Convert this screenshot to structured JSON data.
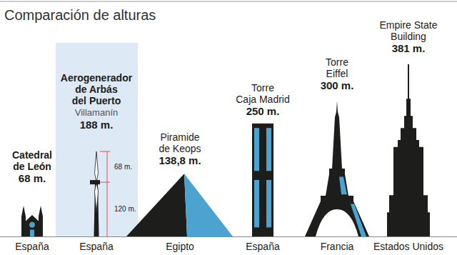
{
  "chart_data": {
    "type": "pictogram",
    "title": "Comparación de alturas",
    "categories": [
      "Catedral\nde León",
      "Aerogenerador\nde Arbás\ndel Puerto",
      "Piramide\nde Keops",
      "Torre\nCaja Madrid",
      "Torre\nEiffel",
      "Empire State\nBuilding"
    ],
    "sublabels": [
      null,
      "Villamanín",
      null,
      null,
      null,
      null
    ],
    "countries": [
      "España",
      "España",
      "Egipto",
      "España",
      "Francia",
      "Estados Unidos"
    ],
    "values": [
      68,
      188,
      138.8,
      250,
      300,
      381
    ],
    "value_labels": [
      "68 m.",
      "188 m.",
      "138,8 m.",
      "250 m.",
      "300 m.",
      "381 m."
    ],
    "turbine_parts": {
      "values": [
        120,
        68
      ],
      "labels": [
        "120 m.",
        "68 m."
      ]
    },
    "data_labels": true,
    "tick_labels": false,
    "color": "#1d1d1b"
  }
}
